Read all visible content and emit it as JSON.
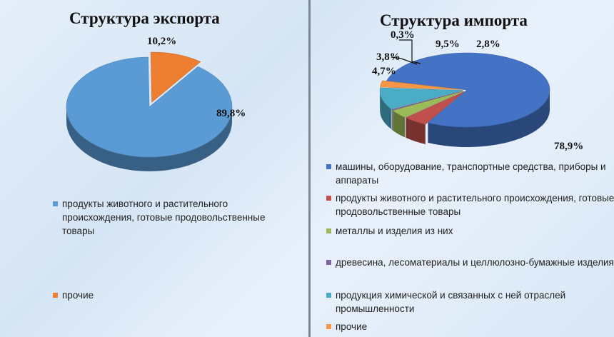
{
  "charts": [
    {
      "id": "export",
      "chart_data": {
        "type": "pie",
        "title": "Структура экспорта",
        "categories": [
          "продукты животного и растительного происхождения, готовые продовольственные товары",
          "прочие"
        ],
        "values": [
          89.8,
          10.2
        ],
        "data_labels": [
          "89,8%",
          "10,2%"
        ],
        "colors": [
          "#5b9bd5",
          "#ed7d31"
        ],
        "legend_position": "bottom"
      }
    },
    {
      "id": "import",
      "chart_data": {
        "type": "pie",
        "title": "Структура импорта",
        "categories": [
          "машины, оборудование, транспортные средства, приборы и аппараты",
          "продукты животного и растительного происхождения, готовые продовольственные товары",
          "металлы и изделия из них",
          "древесина, лесоматериалы и целлюлозно-бумажные изделия",
          "продукция химической и связанных с ней отраслей промышленности",
          "прочие"
        ],
        "values": [
          78.9,
          4.7,
          3.8,
          0.3,
          9.5,
          2.8
        ],
        "data_labels": [
          "78,9%",
          "4,7%",
          "3,8%",
          "0,3%",
          "9,5%",
          "2,8%"
        ],
        "colors": [
          "#4472c4",
          "#c0504d",
          "#9bbb59",
          "#8064a2",
          "#4bacc6",
          "#f79646"
        ],
        "legend_position": "bottom"
      }
    }
  ]
}
